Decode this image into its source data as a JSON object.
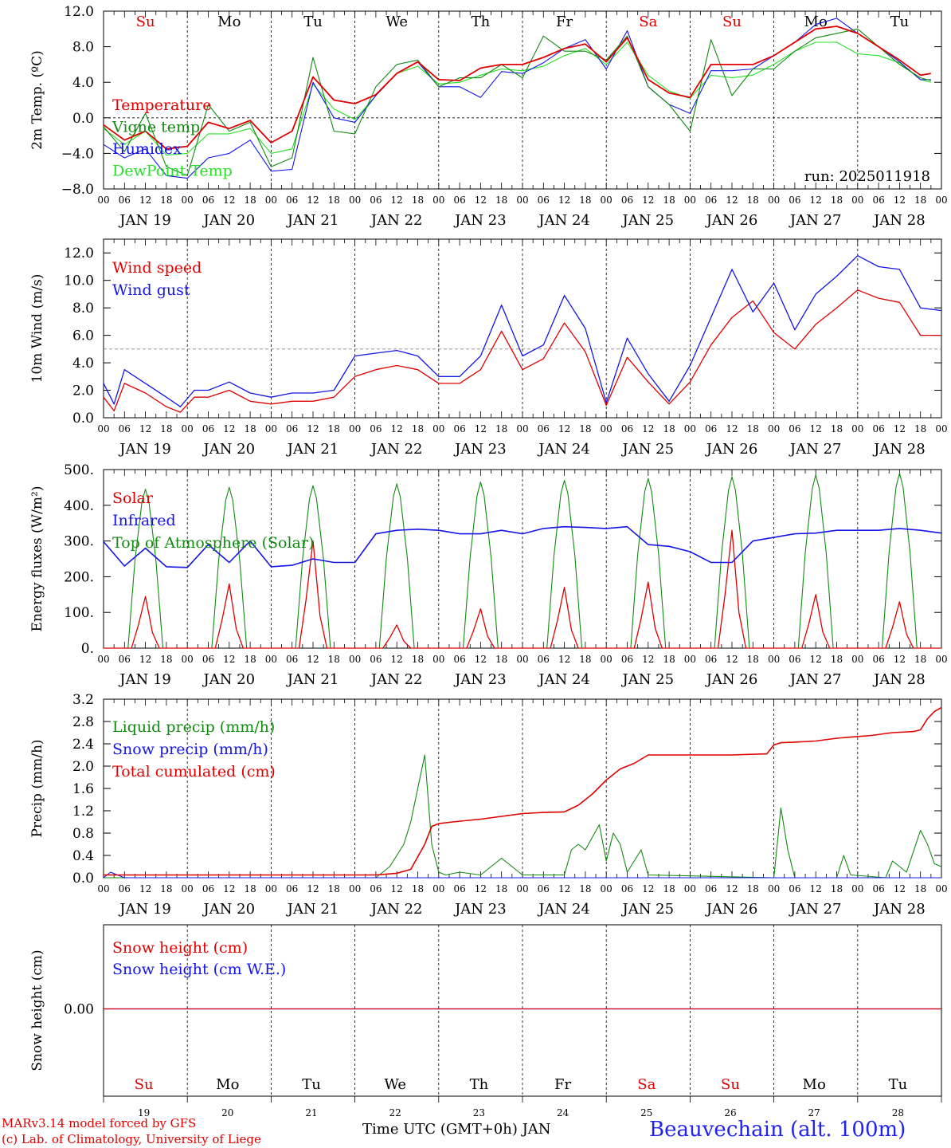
{
  "days": {
    "weekday": [
      "Su",
      "Mo",
      "Tu",
      "We",
      "Th",
      "Fr",
      "Sa",
      "Su",
      "Mo",
      "Tu"
    ],
    "weekday_colors": [
      "#e00000",
      "#000000",
      "#000000",
      "#000000",
      "#000000",
      "#000000",
      "#e00000",
      "#e00000",
      "#000000",
      "#000000"
    ],
    "date_labels": [
      "JAN 19",
      "JAN 20",
      "JAN 21",
      "JAN 22",
      "JAN 23",
      "JAN 24",
      "JAN 25",
      "JAN 26",
      "JAN 27",
      "JAN 28"
    ],
    "day_numbers": [
      "19",
      "20",
      "21",
      "22",
      "23",
      "24",
      "25",
      "26",
      "27",
      "28"
    ],
    "hour_ticks": [
      "00",
      "06",
      "12",
      "18"
    ]
  },
  "footer": {
    "credit_line1": "MARv3.14 model forced by GFS",
    "credit_line2": "(c) Lab. of Climatology, University of Liege",
    "xlabel": "Time UTC (GMT+0h) JAN",
    "station": "Beauvechain (alt. 100m)"
  },
  "chart_data": [
    {
      "type": "line",
      "ylabel": "2m Temp. (ºC)",
      "ylim": [
        -8,
        12
      ],
      "yticks": [
        "12.0",
        "8.0",
        "4.0",
        "0.0",
        "−4.0",
        "−8.0"
      ],
      "ytick_values": [
        12,
        8,
        4,
        0,
        -4,
        -8
      ],
      "reference_line": 0,
      "annotation": "run: 2025011918",
      "x_unit": "hours since JAN 19 00 UTC",
      "series": [
        {
          "name": "Temperature",
          "color": "#e00000",
          "x": [
            0,
            6,
            12,
            18,
            24,
            30,
            36,
            42,
            48,
            54,
            60,
            66,
            72,
            78,
            84,
            90,
            96,
            102,
            108,
            114,
            120,
            126,
            132,
            138,
            144,
            150,
            156,
            162,
            168,
            174,
            180,
            186,
            192,
            198,
            204,
            210,
            216,
            222,
            228,
            234,
            237
          ],
          "y": [
            -0.8,
            -2.5,
            -1.5,
            -3.5,
            -3.2,
            -0.5,
            -1.2,
            -0.3,
            -2.8,
            -1.5,
            4.6,
            2.0,
            1.6,
            2.6,
            5.0,
            6.3,
            4.3,
            4.2,
            5.6,
            6.0,
            6.0,
            6.8,
            7.8,
            8.3,
            6.3,
            9.0,
            4.3,
            2.8,
            2.3,
            6.0,
            6.0,
            6.0,
            7.0,
            8.5,
            10.0,
            10.3,
            9.5,
            8.0,
            6.5,
            4.8,
            5.0
          ]
        },
        {
          "name": "Vigne temp",
          "color": "#138a13",
          "x": [
            0,
            6,
            12,
            18,
            24,
            30,
            36,
            42,
            48,
            54,
            60,
            66,
            72,
            78,
            84,
            90,
            96,
            102,
            108,
            114,
            120,
            126,
            132,
            138,
            144,
            150,
            156,
            162,
            168,
            174,
            180,
            186,
            192,
            198,
            204,
            210,
            216,
            222,
            228,
            234,
            237
          ],
          "y": [
            -1.0,
            -3.8,
            0.5,
            -5.5,
            -6.5,
            1.5,
            -1.5,
            -0.5,
            -5.5,
            -4.5,
            6.8,
            -1.5,
            -1.8,
            3.5,
            6.0,
            6.5,
            3.5,
            4.5,
            4.5,
            6.0,
            4.5,
            9.2,
            7.5,
            7.5,
            6.5,
            9.2,
            3.5,
            1.5,
            -1.5,
            8.8,
            2.5,
            5.5,
            5.5,
            7.5,
            9.0,
            9.5,
            10.0,
            8.0,
            6.0,
            4.5,
            4.2
          ]
        },
        {
          "name": "Humidex",
          "color": "#1515e8",
          "x": [
            0,
            6,
            12,
            18,
            24,
            30,
            36,
            42,
            48,
            54,
            60,
            66,
            72,
            78,
            84,
            90,
            96,
            102,
            108,
            114,
            120,
            126,
            132,
            138,
            144,
            150,
            156,
            162,
            168,
            174,
            180,
            186,
            192,
            198,
            204,
            210,
            216,
            222,
            228,
            234,
            237
          ],
          "y": [
            -3.0,
            -4.5,
            -3.5,
            -6.5,
            -6.8,
            -4.5,
            -4.0,
            -2.5,
            -6.0,
            -5.8,
            4.0,
            0.0,
            -0.5,
            2.5,
            5.0,
            6.3,
            3.5,
            3.5,
            2.3,
            5.2,
            5.0,
            6.2,
            7.8,
            8.8,
            5.5,
            9.8,
            3.5,
            1.5,
            0.5,
            5.3,
            5.3,
            5.5,
            7.0,
            8.5,
            10.5,
            11.2,
            9.5,
            8.0,
            6.3,
            4.3,
            4.3
          ]
        },
        {
          "name": "DewPoint Temp",
          "color": "#28e028",
          "x": [
            0,
            6,
            12,
            18,
            24,
            30,
            36,
            42,
            48,
            54,
            60,
            66,
            72,
            78,
            84,
            90,
            96,
            102,
            108,
            114,
            120,
            126,
            132,
            138,
            144,
            150,
            156,
            162,
            168,
            174,
            180,
            186,
            192,
            198,
            204,
            210,
            216,
            222,
            228,
            234,
            237
          ],
          "y": [
            -1.2,
            -3.0,
            -1.5,
            -4.2,
            -4.0,
            -1.8,
            -1.8,
            -1.2,
            -4.0,
            -3.5,
            3.8,
            1.0,
            -0.2,
            2.5,
            5.0,
            5.8,
            3.8,
            4.0,
            4.8,
            5.5,
            5.3,
            5.8,
            7.0,
            7.8,
            6.0,
            8.5,
            4.8,
            3.0,
            2.2,
            4.8,
            4.5,
            4.8,
            6.0,
            7.5,
            8.5,
            8.5,
            7.2,
            7.0,
            6.2,
            4.3,
            4.0
          ]
        }
      ]
    },
    {
      "type": "line",
      "ylabel": "10m Wind (m/s)",
      "ylim": [
        0,
        13
      ],
      "yticks": [
        "0.0",
        "2.0",
        "4.0",
        "6.0",
        "8.0",
        "10.0",
        "12.0"
      ],
      "ytick_values": [
        0,
        2,
        4,
        6,
        8,
        10,
        12
      ],
      "reference_line": 5,
      "x_unit": "hours since JAN 19 00 UTC",
      "series": [
        {
          "name": "Wind speed",
          "color": "#e00000",
          "x": [
            0,
            3,
            6,
            12,
            18,
            22,
            26,
            30,
            36,
            42,
            48,
            54,
            60,
            66,
            72,
            78,
            84,
            90,
            96,
            102,
            108,
            114,
            120,
            126,
            132,
            138,
            144,
            150,
            156,
            162,
            168,
            174,
            180,
            186,
            192,
            198,
            204,
            210,
            216,
            222,
            228,
            234,
            240
          ],
          "y": [
            1.5,
            0.5,
            2.5,
            1.8,
            0.8,
            0.4,
            1.5,
            1.5,
            2.0,
            1.2,
            1.0,
            1.2,
            1.2,
            1.5,
            3.0,
            3.5,
            3.8,
            3.5,
            2.5,
            2.5,
            3.5,
            6.3,
            3.5,
            4.3,
            6.9,
            4.8,
            0.9,
            4.4,
            2.6,
            1.0,
            2.6,
            5.3,
            7.3,
            8.5,
            6.2,
            5.0,
            6.8,
            8.0,
            9.3,
            8.7,
            8.4,
            6.0,
            6.0
          ]
        },
        {
          "name": "Wind gust",
          "color": "#1515e8",
          "x": [
            0,
            3,
            6,
            12,
            18,
            22,
            26,
            30,
            36,
            42,
            48,
            54,
            60,
            66,
            72,
            78,
            84,
            90,
            96,
            102,
            108,
            114,
            120,
            126,
            132,
            138,
            144,
            150,
            156,
            162,
            168,
            174,
            180,
            186,
            192,
            198,
            204,
            210,
            216,
            222,
            228,
            234,
            240
          ],
          "y": [
            2.5,
            1.0,
            3.5,
            2.5,
            1.5,
            0.8,
            2.0,
            2.0,
            2.6,
            1.8,
            1.5,
            1.8,
            1.8,
            2.0,
            4.5,
            4.7,
            4.9,
            4.5,
            3.0,
            3.0,
            4.5,
            8.2,
            4.5,
            5.3,
            8.9,
            6.5,
            1.1,
            5.8,
            3.2,
            1.2,
            3.8,
            7.3,
            10.8,
            7.7,
            9.8,
            6.4,
            9.0,
            10.3,
            11.8,
            11.0,
            10.8,
            8.0,
            7.8
          ]
        }
      ]
    },
    {
      "type": "line",
      "ylabel": "Energy fluxes (W/m²)",
      "ylim": [
        0,
        500
      ],
      "yticks": [
        "0.",
        "100.",
        "200.",
        "300.",
        "400.",
        "500."
      ],
      "ytick_values": [
        0,
        100,
        200,
        300,
        400,
        500
      ],
      "x_unit": "hours since JAN 19 00 UTC",
      "daytime_start_hours": [
        7,
        31,
        55,
        79,
        103,
        127,
        151,
        175,
        199,
        223
      ],
      "daytime_end_hours": [
        17,
        41,
        65,
        89,
        113,
        137,
        161,
        185,
        209,
        233
      ],
      "series": [
        {
          "name": "Solar",
          "color": "#e00000",
          "daily_peak": [
            145,
            180,
            300,
            65,
            110,
            170,
            185,
            330,
            150,
            130
          ]
        },
        {
          "name": "Infrared",
          "color": "#1515e8",
          "x": [
            0,
            6,
            12,
            18,
            24,
            30,
            36,
            42,
            48,
            54,
            60,
            66,
            72,
            78,
            84,
            90,
            96,
            102,
            108,
            114,
            120,
            126,
            132,
            138,
            144,
            150,
            156,
            162,
            168,
            174,
            180,
            186,
            192,
            198,
            204,
            210,
            216,
            222,
            228,
            234,
            240
          ],
          "y": [
            298,
            230,
            280,
            228,
            226,
            290,
            240,
            300,
            228,
            232,
            250,
            240,
            240,
            320,
            330,
            333,
            330,
            320,
            320,
            330,
            320,
            335,
            340,
            338,
            335,
            340,
            290,
            285,
            270,
            240,
            240,
            300,
            310,
            320,
            322,
            330,
            330,
            330,
            335,
            330,
            322
          ]
        },
        {
          "name": "Top of Atmosphere (Solar)",
          "color": "#138a13",
          "daily_peak": [
            445,
            450,
            455,
            460,
            465,
            470,
            475,
            480,
            485,
            490
          ]
        }
      ]
    },
    {
      "type": "line",
      "ylabel": "Precip (mm/h)",
      "ylim": [
        0,
        3.2
      ],
      "yticks": [
        "0.0",
        "0.4",
        "0.8",
        "1.2",
        "1.6",
        "2.0",
        "2.4",
        "2.8",
        "3.2"
      ],
      "ytick_values": [
        0,
        0.4,
        0.8,
        1.2,
        1.6,
        2.0,
        2.4,
        2.8,
        3.2
      ],
      "x_unit": "hours since JAN 19 00 UTC",
      "series": [
        {
          "name": "Liquid precip (mm/h)",
          "color": "#138a13",
          "x": [
            0,
            78,
            82,
            86,
            88,
            90,
            92,
            94,
            96,
            98,
            102,
            108,
            114,
            120,
            132,
            134,
            136,
            138,
            142,
            144,
            146,
            148,
            150,
            154,
            156,
            192,
            194,
            196,
            198,
            210,
            212,
            214,
            224,
            226,
            230,
            234,
            236,
            238,
            240
          ],
          "y": [
            0,
            0,
            0.2,
            0.6,
            1.0,
            1.6,
            2.2,
            0.6,
            0.1,
            0.05,
            0.1,
            0.05,
            0.35,
            0.05,
            0.05,
            0.5,
            0.6,
            0.5,
            0.95,
            0.3,
            0.8,
            0.6,
            0.1,
            0.5,
            0.05,
            0,
            1.25,
            0.5,
            0,
            0,
            0.4,
            0.05,
            0,
            0.3,
            0.1,
            0.85,
            0.6,
            0.25,
            0.2
          ]
        },
        {
          "name": "Snow precip (mm/h)",
          "color": "#1515e8",
          "x": [
            0,
            2,
            4,
            6,
            240
          ],
          "y": [
            0,
            0.1,
            0.05,
            0,
            0
          ]
        },
        {
          "name": "Total cumulated (cm)",
          "color": "#e00000",
          "x": [
            0,
            78,
            84,
            88,
            92,
            94,
            96,
            100,
            108,
            114,
            120,
            126,
            132,
            136,
            140,
            144,
            148,
            152,
            156,
            168,
            180,
            190,
            192,
            194,
            198,
            204,
            210,
            214,
            220,
            226,
            232,
            234,
            236,
            238,
            240
          ],
          "y": [
            0.05,
            0.05,
            0.08,
            0.15,
            0.6,
            0.92,
            0.97,
            1.0,
            1.05,
            1.1,
            1.15,
            1.17,
            1.18,
            1.3,
            1.5,
            1.75,
            1.95,
            2.05,
            2.2,
            2.2,
            2.2,
            2.22,
            2.38,
            2.42,
            2.43,
            2.45,
            2.5,
            2.52,
            2.55,
            2.6,
            2.62,
            2.65,
            2.85,
            2.98,
            3.05
          ]
        }
      ]
    },
    {
      "type": "line",
      "ylabel": "Snow height (cm)",
      "yticks": [
        "0.00"
      ],
      "ytick_values": [
        0
      ],
      "series": [
        {
          "name": "Snow height (cm)",
          "color": "#e00000",
          "x": [
            0,
            240
          ],
          "y": [
            0,
            0
          ]
        },
        {
          "name": "Snow height (cm W.E.)",
          "color": "#1515e8",
          "x": [
            0,
            240
          ],
          "y": [
            0,
            0
          ]
        }
      ]
    }
  ]
}
